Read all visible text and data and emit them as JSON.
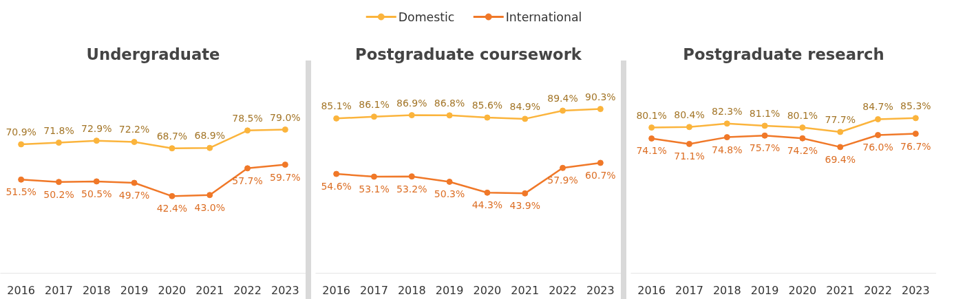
{
  "chart_data": [
    {
      "type": "line",
      "title": "Undergraduate",
      "categories": [
        "2016",
        "2017",
        "2018",
        "2019",
        "2020",
        "2021",
        "2022",
        "2023"
      ],
      "tick_labels": "x",
      "marker": "circle",
      "legend": "top",
      "grid": false,
      "series": [
        {
          "name": "Domestic",
          "color": "#fbb43c",
          "values": [
            70.9,
            71.8,
            72.9,
            72.2,
            68.7,
            68.9,
            78.5,
            79.0
          ],
          "value_labels": [
            "70.9%",
            "71.8%",
            "72.9%",
            "72.2%",
            "68.7%",
            "68.9%",
            "78.5%",
            "79.0%"
          ]
        },
        {
          "name": "International",
          "color": "#f07828",
          "values": [
            51.5,
            50.2,
            50.5,
            49.7,
            42.4,
            43.0,
            57.7,
            59.7
          ],
          "value_labels": [
            "51.5%",
            "50.2%",
            "50.5%",
            "49.7%",
            "42.4%",
            "43.0%",
            "57.7%",
            "59.7%"
          ]
        }
      ]
    },
    {
      "type": "line",
      "title": "Postgraduate coursework",
      "categories": [
        "2016",
        "2017",
        "2018",
        "2019",
        "2020",
        "2021",
        "2022",
        "2023"
      ],
      "tick_labels": "x",
      "marker": "circle",
      "grid": false,
      "series": [
        {
          "color": "#fbb43c",
          "values": [
            85.1,
            86.1,
            86.9,
            86.8,
            85.6,
            84.9,
            89.4,
            90.3
          ],
          "value_labels": [
            "85.1%",
            "86.1%",
            "86.9%",
            "86.8%",
            "85.6%",
            "84.9%",
            "89.4%",
            "90.3%"
          ]
        },
        {
          "color": "#f07828",
          "values": [
            54.6,
            53.1,
            53.2,
            50.3,
            44.3,
            43.9,
            57.9,
            60.7
          ],
          "value_labels": [
            "54.6%",
            "53.1%",
            "53.2%",
            "50.3%",
            "44.3%",
            "43.9%",
            "57.9%",
            "60.7%"
          ]
        }
      ]
    },
    {
      "type": "line",
      "title": "Postgraduate research",
      "categories": [
        "2016",
        "2017",
        "2018",
        "2019",
        "2020",
        "2021",
        "2022",
        "2023"
      ],
      "tick_labels": "x",
      "marker": "circle",
      "grid": false,
      "series": [
        {
          "color": "#fbb43c",
          "values": [
            80.1,
            80.4,
            82.3,
            81.1,
            80.1,
            77.7,
            84.7,
            85.3
          ],
          "value_labels": [
            "80.1%",
            "80.4%",
            "82.3%",
            "81.1%",
            "80.1%",
            "77.7%",
            "84.7%",
            "85.3%"
          ]
        },
        {
          "color": "#f07828",
          "values": [
            74.1,
            71.1,
            74.8,
            75.7,
            74.2,
            69.4,
            76.0,
            76.7
          ],
          "value_labels": [
            "74.1%",
            "71.1%",
            "74.8%",
            "75.7%",
            "74.2%",
            "69.4%",
            "76.0%",
            "76.7%"
          ]
        }
      ]
    }
  ]
}
